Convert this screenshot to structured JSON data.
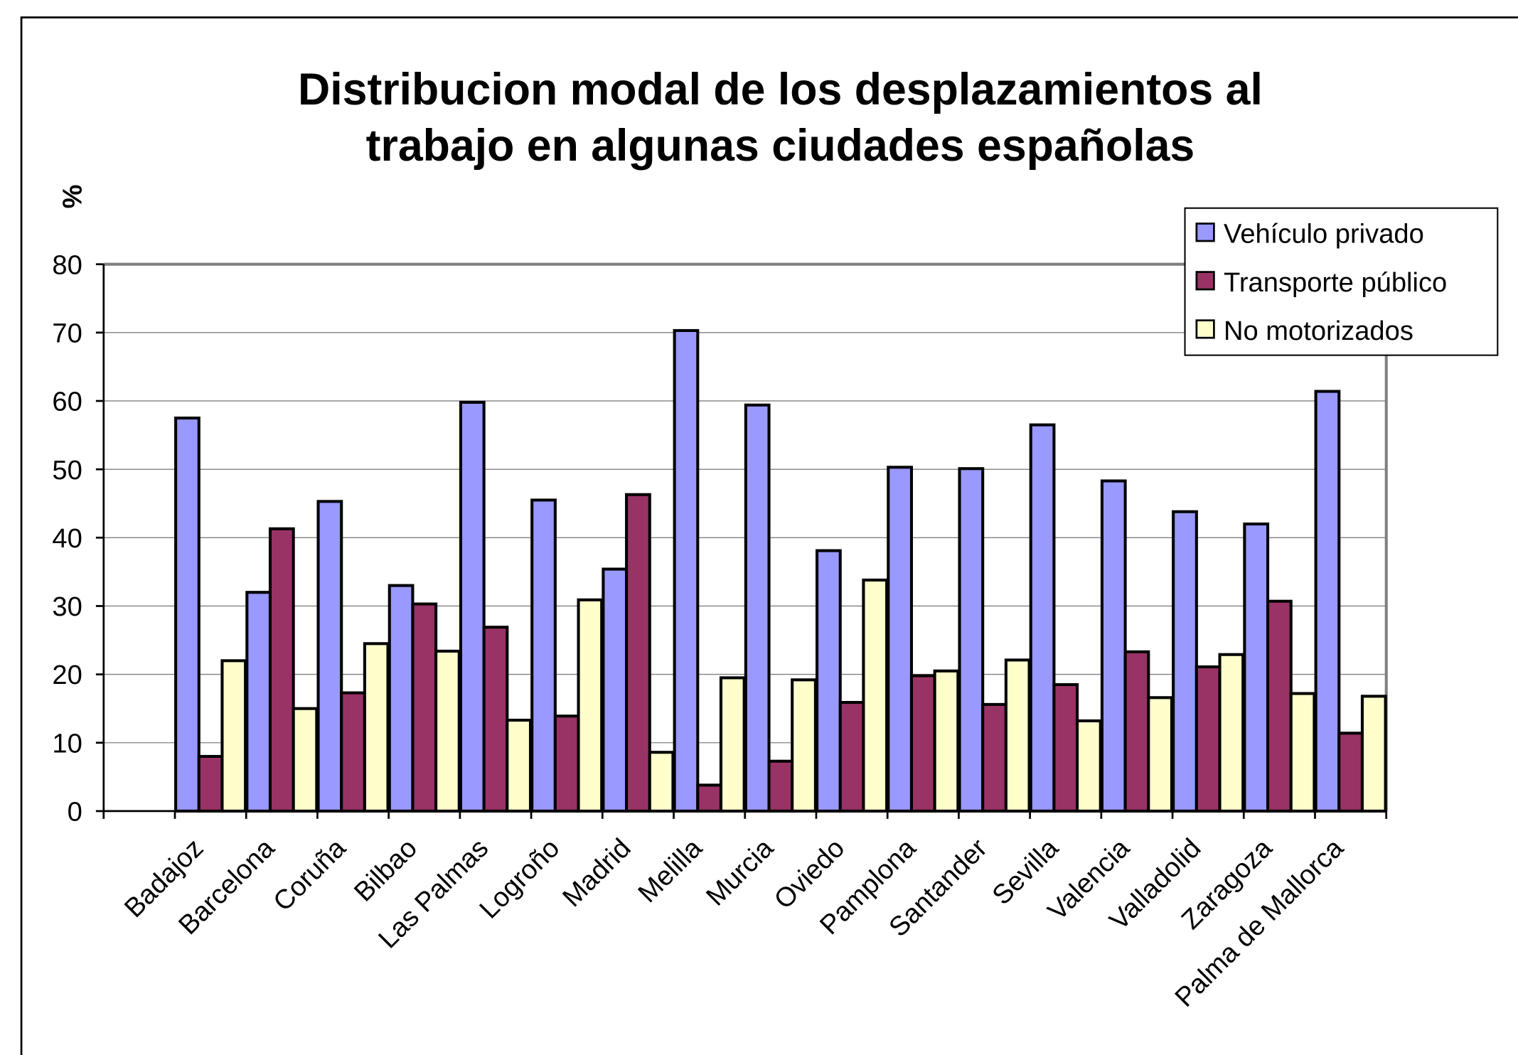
{
  "chart_data": {
    "type": "bar",
    "title": "Distribucion modal de los desplazamientos al trabajo en algunas ciudades españolas",
    "y_label": "%",
    "categories": [
      null,
      "Badajoz",
      "Barcelona",
      "Coruña",
      "Bilbao",
      "Las Palmas",
      "Logroño",
      "Madrid",
      "Melilla",
      "Murcia",
      "Oviedo",
      "Pamplona",
      "Santander",
      "Sevilla",
      "Valencia",
      "Valladolid",
      "Zaragoza",
      "Palma de Mallorca"
    ],
    "series": [
      {
        "name": "Vehículo privado",
        "color": "#9999ff",
        "values": [
          null,
          57.5,
          32,
          45.3,
          33,
          59.8,
          45.5,
          35.4,
          70.3,
          59.4,
          38.1,
          50.3,
          50.1,
          56.5,
          48.3,
          43.8,
          42,
          61.4
        ]
      },
      {
        "name": "Transporte público",
        "color": "#993366",
        "values": [
          null,
          8,
          41.3,
          17.3,
          30.3,
          26.9,
          13.9,
          46.3,
          3.8,
          7.3,
          15.9,
          19.8,
          15.6,
          18.5,
          23.3,
          21.1,
          30.7,
          11.4
        ]
      },
      {
        "name": "No motorizados",
        "color": "#ffffcc",
        "values": [
          null,
          22,
          15,
          24.5,
          23.4,
          13.3,
          30.9,
          8.6,
          19.5,
          19.2,
          33.8,
          20.5,
          22.1,
          13.2,
          16.6,
          22.9,
          17.2,
          16.8
        ]
      }
    ],
    "ylim": [
      0,
      80
    ],
    "yticks": [
      0,
      10,
      20,
      30,
      40,
      50,
      60,
      70,
      80
    ],
    "grid": true,
    "legend": "top-right"
  }
}
